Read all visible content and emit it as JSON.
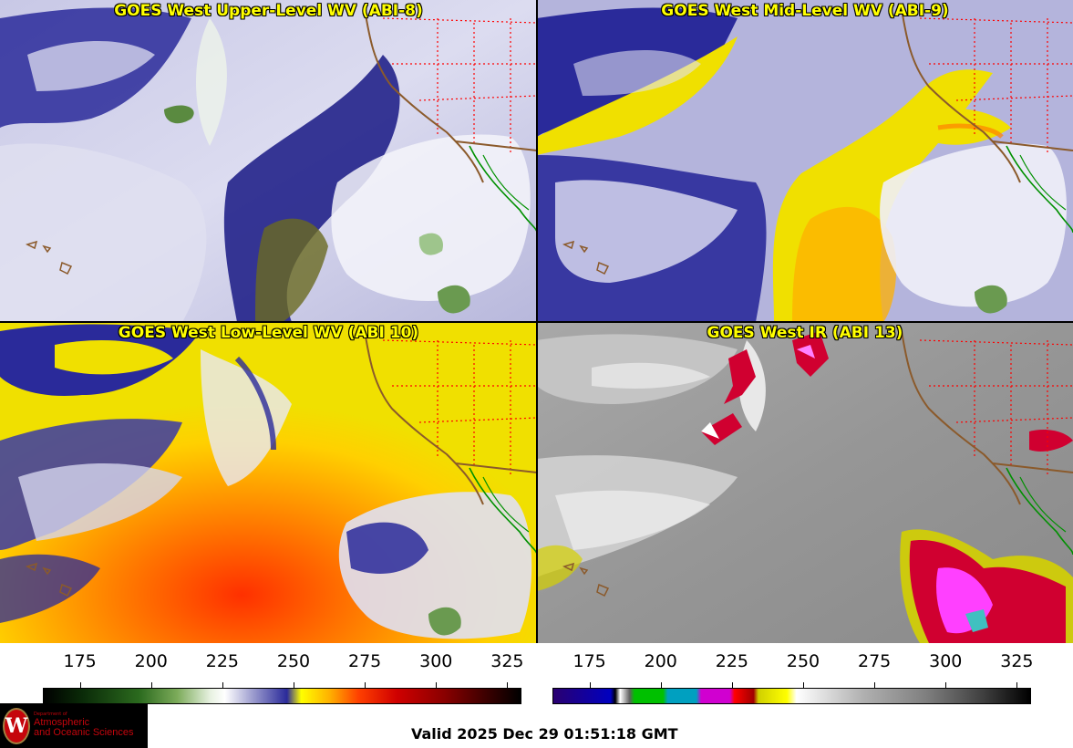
{
  "panels": [
    {
      "title": "GOES West Upper-Level WV (ABI-8)"
    },
    {
      "title": "GOES West Mid-Level WV (ABI-9)"
    },
    {
      "title": "GOES West Low-Level WV (ABI 10)"
    },
    {
      "title": "GOES West IR (ABI 13)"
    }
  ],
  "colorbars": {
    "water_vapor": {
      "ticks": [
        "175",
        "200",
        "225",
        "250",
        "275",
        "300",
        "325"
      ],
      "range": [
        162,
        330
      ]
    },
    "infrared": {
      "ticks": [
        "175",
        "200",
        "225",
        "250",
        "275",
        "300",
        "325"
      ],
      "range": [
        162,
        330
      ]
    }
  },
  "logo": {
    "small": "Department of",
    "line1": "Atmospheric",
    "line2": "and Oceanic Sciences",
    "seal_letter": "W"
  },
  "valid_text": "Valid 2025 Dec 29 01:51:18 GMT",
  "colors": {
    "title": "#ffff00",
    "state_borders": "#ff0000",
    "coastline": "#8b5a2b",
    "mexico_border": "#00a000"
  }
}
